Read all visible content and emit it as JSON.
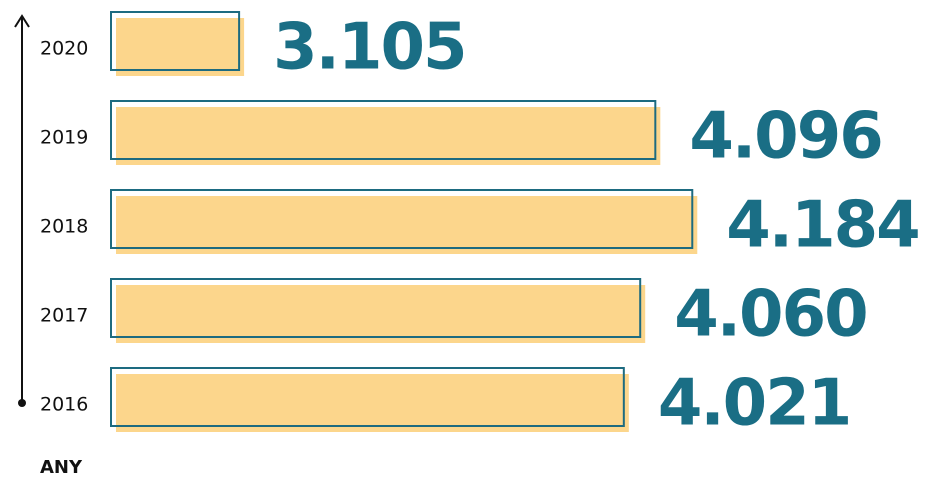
{
  "chart_data": {
    "type": "bar",
    "orientation": "horizontal",
    "y_axis_label": "ANY",
    "categories": [
      "2020",
      "2019",
      "2018",
      "2017",
      "2016"
    ],
    "values": [
      3105,
      4096,
      4184,
      4060,
      4021
    ],
    "value_labels": [
      "3.105",
      "4.096",
      "4.184",
      "4.060",
      "4.021"
    ],
    "color": "#fcd68c",
    "edge_color": "#1d6b80",
    "label_color": "#1a6e85",
    "xlim": [
      2800,
      4200
    ]
  }
}
